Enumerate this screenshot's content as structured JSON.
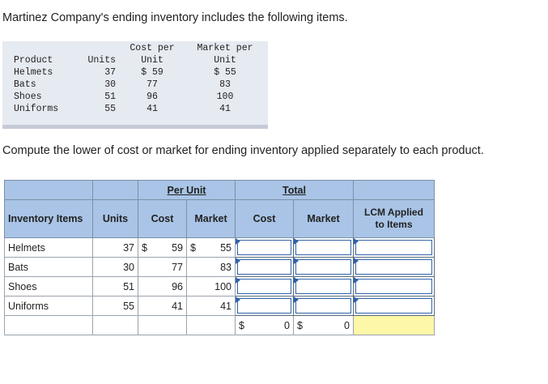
{
  "intro_text": "Martinez Company's ending inventory includes the following items.",
  "given": {
    "header_row1": {
      "cost": "Cost per",
      "market": "Market per"
    },
    "header_row2": {
      "product": "Product",
      "units": "Units",
      "cost": "Unit",
      "market": "Unit"
    },
    "rows": [
      {
        "product": "Helmets",
        "units": "37",
        "cost": "$ 59",
        "market": "$ 55"
      },
      {
        "product": "Bats",
        "units": "30",
        "cost": "77",
        "market": "83"
      },
      {
        "product": "Shoes",
        "units": "51",
        "cost": "96",
        "market": "100"
      },
      {
        "product": "Uniforms",
        "units": "55",
        "cost": "41",
        "market": "41"
      }
    ]
  },
  "instruction_text": "Compute the lower of cost or market for ending inventory applied separately to each product.",
  "grid": {
    "group_per_unit": "Per Unit",
    "group_total": "Total",
    "col_items": "Inventory Items",
    "col_units": "Units",
    "col_cost": "Cost",
    "col_market": "Market",
    "col_total_cost": "Cost",
    "col_total_market": "Market",
    "col_lcm_line1": "LCM Applied",
    "col_lcm_line2": "to Items",
    "rows": [
      {
        "item": "Helmets",
        "units": "37",
        "cost_sign": "$",
        "cost": "59",
        "market_sign": "$",
        "market": "55"
      },
      {
        "item": "Bats",
        "units": "30",
        "cost": "77",
        "market": "83"
      },
      {
        "item": "Shoes",
        "units": "51",
        "cost": "96",
        "market": "100"
      },
      {
        "item": "Uniforms",
        "units": "55",
        "cost": "41",
        "market": "41"
      }
    ],
    "totals": {
      "cost_sign": "$",
      "cost": "0",
      "market_sign": "$",
      "market": "0"
    }
  },
  "colors": {
    "header_bg": "#a9c4e6",
    "given_bg": "#e6eaf1",
    "total_highlight": "#fdf7a8",
    "input_border": "#2f62a8"
  }
}
